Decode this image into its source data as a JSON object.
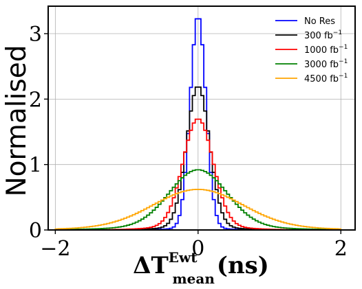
{
  "chart_data": {
    "type": "line",
    "ylabel": "Normalised",
    "xlabel": {
      "main": "ΔT",
      "superscript": "Ewt",
      "subscript": "mean",
      "unit": "(ns)"
    },
    "xlim": [
      -2.1,
      2.2
    ],
    "ylim": [
      0,
      3.42
    ],
    "xticks": [
      -2,
      0,
      2
    ],
    "xtick_labels": [
      "−2",
      "0",
      "2"
    ],
    "yticks": [
      0,
      1,
      2,
      3
    ],
    "ytick_labels": [
      "0",
      "1",
      "2",
      "3"
    ],
    "grid": true,
    "legend_position": "top-right",
    "histogram": {
      "range": [
        -2,
        2
      ],
      "bins": 100
    },
    "series": [
      {
        "name": "No Res",
        "label": {
          "base": "No Res",
          "sup": ""
        },
        "color": "#0000ff",
        "shape": {
          "amp": 3.25,
          "sigma": 0.11,
          "tail_amp": 0.03,
          "tail_sigma": 0.35
        }
      },
      {
        "name": "300 fb⁻¹",
        "label": {
          "base": "300  fb",
          "sup": "−1"
        },
        "color": "#000000",
        "shape": {
          "amp": 2.15,
          "sigma": 0.16,
          "tail_amp": 0.05,
          "tail_sigma": 0.45
        }
      },
      {
        "name": "1000 fb⁻¹",
        "label": {
          "base": "1000  fb",
          "sup": "−1"
        },
        "color": "#ff0000",
        "shape": {
          "amp": 1.64,
          "sigma": 0.21,
          "tail_amp": 0.06,
          "tail_sigma": 0.55
        }
      },
      {
        "name": "3000 fb⁻¹",
        "label": {
          "base": "3000  fb",
          "sup": "−1"
        },
        "color": "#008000",
        "shape": {
          "amp": 0.87,
          "sigma": 0.4,
          "tail_amp": 0.05,
          "tail_sigma": 0.95
        }
      },
      {
        "name": "4500 fb⁻¹",
        "label": {
          "base": "4500  fb",
          "sup": "−1"
        },
        "color": "#ffa500",
        "shape": {
          "amp": 0.58,
          "sigma": 0.62,
          "tail_amp": 0.04,
          "tail_sigma": 1.3
        }
      }
    ]
  }
}
